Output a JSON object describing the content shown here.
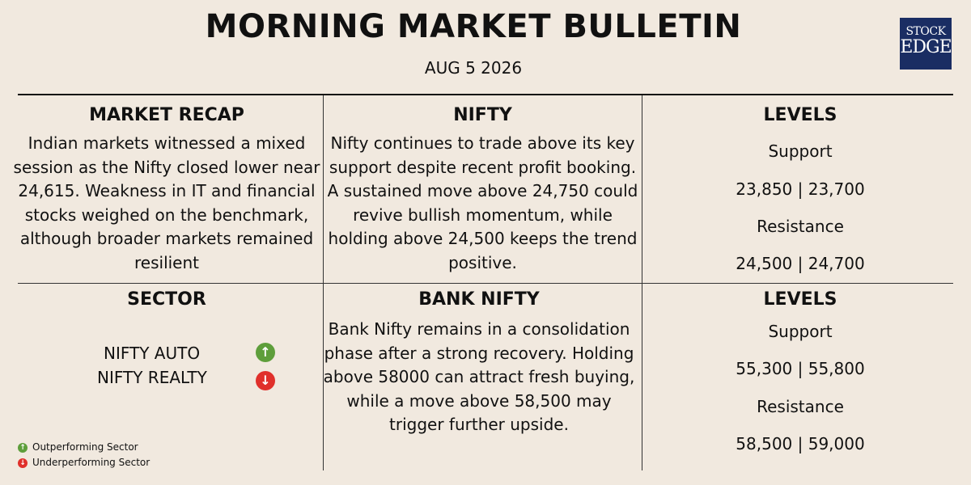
{
  "header": {
    "title": "MORNING MARKET BULLETIN",
    "date": "AUG 5 2026",
    "logo_line1": "STOCK",
    "logo_line2": "EDGE"
  },
  "market_recap": {
    "heading": "MARKET RECAP",
    "text": "Indian markets witnessed a mixed session as the Nifty closed lower near 24,615. Weakness in IT and financial stocks weighed on the benchmark, although broader markets remained resilient"
  },
  "nifty": {
    "heading": "NIFTY",
    "text": "Nifty continues to trade above its key support despite recent profit booking. A sustained move above 24,750 could revive bullish momentum, while holding above 24,500 keeps the trend positive."
  },
  "nifty_levels": {
    "heading": "LEVELS",
    "support_label": "Support",
    "support_values": "23,850 | 23,700",
    "resistance_label": "Resistance",
    "resistance_values": "24,500 | 24,700"
  },
  "sector": {
    "heading": "SECTOR",
    "items": [
      {
        "name": "NIFTY AUTO",
        "status": "up",
        "icon": "up-arrow-icon",
        "color": "#5e9e3b"
      },
      {
        "name": "NIFTY REALTY",
        "status": "down",
        "icon": "down-arrow-icon",
        "color": "#e0302b"
      }
    ],
    "legend": [
      {
        "label": "Outperforming Sector",
        "icon": "up-arrow-icon",
        "color": "#5e9e3b"
      },
      {
        "label": "Underperforming Sector",
        "icon": "down-arrow-icon",
        "color": "#e0302b"
      }
    ]
  },
  "bank_nifty": {
    "heading": "BANK NIFTY",
    "text": "Bank Nifty remains in a consolidation phase after a strong recovery. Holding above 58000 can attract fresh buying, while a move above 58,500 may trigger further upside."
  },
  "bank_levels": {
    "heading": "LEVELS",
    "support_label": "Support",
    "support_values": "55,300 | 55,800",
    "resistance_label": "Resistance",
    "resistance_values": "58,500 | 59,000"
  },
  "colors": {
    "background": "#f1e9df",
    "logo_bg": "#1a2d63",
    "up": "#5e9e3b",
    "down": "#e0302b"
  }
}
